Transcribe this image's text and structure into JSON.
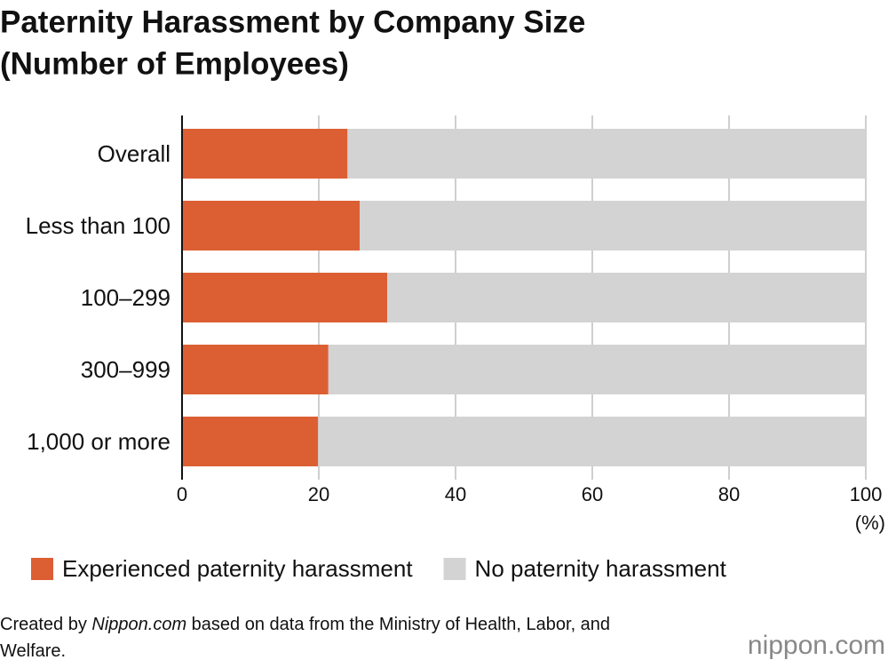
{
  "chart_data": {
    "type": "stacked-bar-horizontal",
    "title": [
      "Paternity Harassment by Company Size",
      "(Number of Employees)"
    ],
    "categories": [
      "Overall",
      "Less than 100",
      "100–299",
      "300–999",
      "1,000 or more"
    ],
    "series": [
      {
        "name": "Experienced paternity harassment",
        "color": "#dc5f33",
        "values": [
          24.2,
          26.0,
          30.0,
          21.4,
          19.9
        ]
      },
      {
        "name": "No paternity harassment",
        "color": "#d3d3d3",
        "values": [
          75.8,
          74.0,
          70.0,
          78.6,
          80.1
        ]
      }
    ],
    "xlim": [
      0,
      100
    ],
    "xticks": [
      0,
      20,
      40,
      60,
      80,
      100
    ],
    "x_unit": "(%)",
    "grid": true,
    "source": {
      "prefix": "Created by ",
      "italic": "Nippon.com",
      "suffix": " based on data from the Ministry of Health, Labor, and Welfare."
    },
    "logo": "nippon.com"
  }
}
